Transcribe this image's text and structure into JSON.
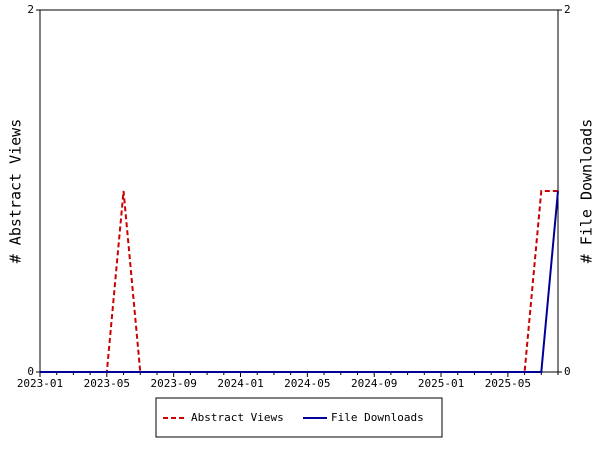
{
  "chart_data": {
    "type": "line",
    "categories": [
      "2023-01",
      null,
      null,
      null,
      "2023-05",
      null,
      null,
      null,
      "2023-09",
      null,
      null,
      null,
      "2024-01",
      null,
      null,
      null,
      "2024-05",
      null,
      null,
      null,
      "2024-09",
      null,
      null,
      null,
      "2025-01",
      null,
      null,
      null,
      "2025-05",
      null,
      null,
      null
    ],
    "y_label": "# Abstract Views",
    "y2_label": "# File Downloads",
    "ylim": [
      0,
      2
    ],
    "yticks": [
      0,
      2
    ],
    "y2lim": [
      0,
      2
    ],
    "y2ticks": [
      0,
      2
    ],
    "grid": false,
    "legend": "bottom",
    "series": [
      {
        "name": "Abstract Views",
        "color": "#cc0000",
        "dash": true,
        "values": [
          0,
          0,
          0,
          0,
          0,
          1,
          0,
          0,
          0,
          0,
          0,
          0,
          0,
          0,
          0,
          0,
          0,
          0,
          0,
          0,
          0,
          0,
          0,
          0,
          0,
          0,
          0,
          0,
          0,
          0,
          1,
          1
        ]
      },
      {
        "name": "File Downloads",
        "color": "#000099",
        "dash": false,
        "axis": "y2",
        "values": [
          0,
          0,
          0,
          0,
          0,
          0,
          0,
          0,
          0,
          0,
          0,
          0,
          0,
          0,
          0,
          0,
          0,
          0,
          0,
          0,
          0,
          0,
          0,
          0,
          0,
          0,
          0,
          0,
          0,
          0,
          0,
          1
        ]
      }
    ]
  }
}
